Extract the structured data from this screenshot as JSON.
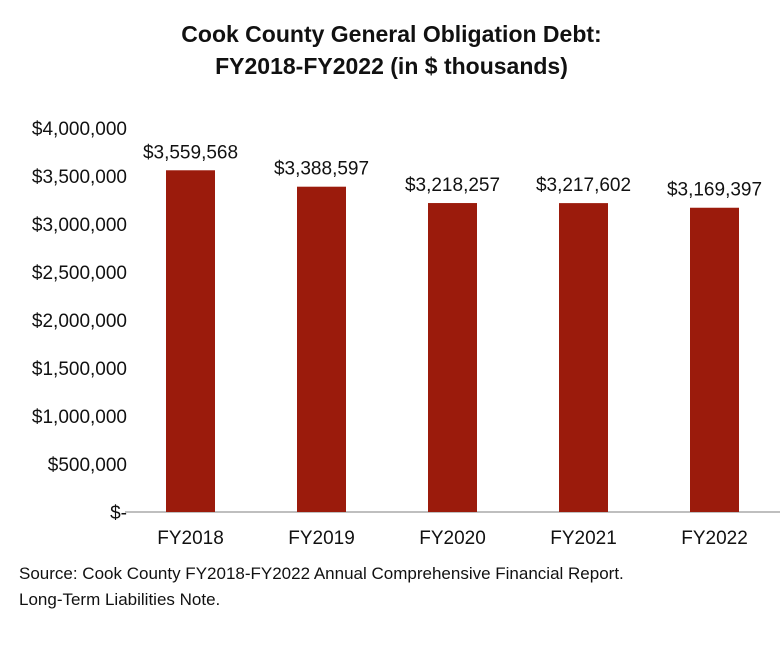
{
  "chart_data": {
    "type": "bar",
    "title_line1": "Cook County General Obligation Debt:",
    "title_line2": "FY2018-FY2022 (in $ thousands)",
    "xlabel": "",
    "ylabel": "",
    "categories": [
      "FY2018",
      "FY2019",
      "FY2020",
      "FY2021",
      "FY2022"
    ],
    "values": [
      3559568,
      3388597,
      3218257,
      3217602,
      3169397
    ],
    "data_labels": [
      "$3,559,568",
      "$3,388,597",
      "$3,218,257",
      "$3,217,602",
      "$3,169,397"
    ],
    "y_ticks": [
      0,
      500000,
      1000000,
      1500000,
      2000000,
      2500000,
      3000000,
      3500000,
      4000000
    ],
    "y_tick_labels": [
      "$-",
      "$500,000",
      "$1,000,000",
      "$1,500,000",
      "$2,000,000",
      "$2,500,000",
      "$3,000,000",
      "$3,500,000",
      "$4,000,000"
    ],
    "ylim": [
      0,
      4000000
    ],
    "grid": false,
    "legend": "none",
    "bar_color": "#9b1b0c"
  },
  "source": {
    "line1": "Source: Cook County FY2018-FY2022 Annual Comprehensive Financial Report.",
    "line2": "Long-Term Liabilities Note."
  }
}
